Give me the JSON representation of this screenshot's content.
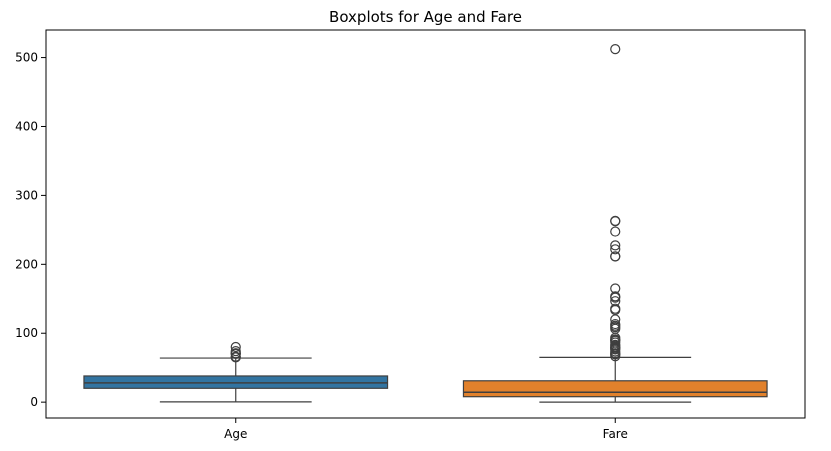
{
  "chart_data": {
    "type": "boxplot",
    "title": "Boxplots for Age and Fare",
    "xlabel": "",
    "ylabel": "",
    "categories": [
      "Age",
      "Fare"
    ],
    "ylim": [
      -23,
      540
    ],
    "yticks": [
      0,
      100,
      200,
      300,
      400,
      500
    ],
    "ytick_labels": [
      "0",
      "100",
      "200",
      "300",
      "400",
      "500"
    ],
    "grid": false,
    "series": [
      {
        "category": "Age",
        "color": "#3274a1",
        "whisker_low": 0.42,
        "q1": 20.1,
        "median": 28,
        "q3": 38,
        "whisker_high": 64,
        "outliers": [
          65,
          66,
          70,
          70.5,
          71,
          74,
          80
        ]
      },
      {
        "category": "Fare",
        "color": "#e1812c",
        "whisker_low": 0,
        "q1": 7.9,
        "median": 14.45,
        "q3": 31,
        "whisker_high": 65,
        "outliers": [
          66.6,
          69.3,
          69.55,
          71,
          73.5,
          76.3,
          77.3,
          78.85,
          79.2,
          80,
          82.2,
          83.2,
          86.5,
          89.1,
          90,
          91.1,
          93.5,
          106.4,
          108.9,
          110.9,
          113.3,
          120,
          133.7,
          135.6,
          146.5,
          151.6,
          153.5,
          164.9,
          211.3,
          211.5,
          221.8,
          227.5,
          247.5,
          262.4,
          263,
          512.3
        ]
      }
    ]
  }
}
